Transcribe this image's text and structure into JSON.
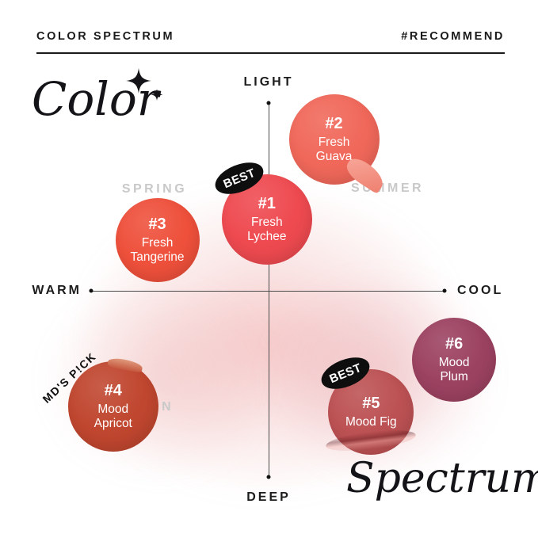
{
  "header": {
    "left": "COLOR SPECTRUM",
    "right": "#RECOMMEND"
  },
  "decor": {
    "script_top": "Color",
    "script_bottom": "Spectrum",
    "sparkle_color": "#141418"
  },
  "badges": {
    "best": "BEST",
    "md_pick": "MD'S P!CK"
  },
  "chart_data": {
    "type": "scatter",
    "title": "COLOR SPECTRUM",
    "x_axis": {
      "label_left": "WARM",
      "label_right": "COOL",
      "range": [
        -1,
        1
      ]
    },
    "y_axis": {
      "label_top": "LIGHT",
      "label_bottom": "DEEP",
      "range": [
        -1,
        1
      ]
    },
    "quadrant_labels": [
      "SPRING",
      "SUMMER",
      "AUTUMN"
    ],
    "grid": false,
    "points": [
      {
        "id": "#1",
        "name": "Fresh Lychee",
        "x": -0.01,
        "y": 0.38,
        "r": 57,
        "color": "#EE4A50",
        "badge": "BEST"
      },
      {
        "id": "#2",
        "name": "Fresh Guava",
        "x": 0.37,
        "y": 0.81,
        "r": 57,
        "color": "#F0685A",
        "badge": null
      },
      {
        "id": "#3",
        "name": "Fresh Tangerine",
        "x": -0.63,
        "y": 0.27,
        "r": 53,
        "color": "#EE503B",
        "badge": null
      },
      {
        "id": "#4",
        "name": "Mood Apricot",
        "x": -0.88,
        "y": -0.62,
        "r": 57,
        "color": "#C0462F",
        "badge": "MD'S P!CK"
      },
      {
        "id": "#5",
        "name": "Mood Fig",
        "x": 0.58,
        "y": -0.65,
        "r": 54,
        "color": "#BC5153",
        "badge": "BEST"
      },
      {
        "id": "#6",
        "name": "Mood Plum",
        "x": 1.05,
        "y": -0.37,
        "r": 53,
        "color": "#9C4261",
        "badge": null
      }
    ]
  }
}
